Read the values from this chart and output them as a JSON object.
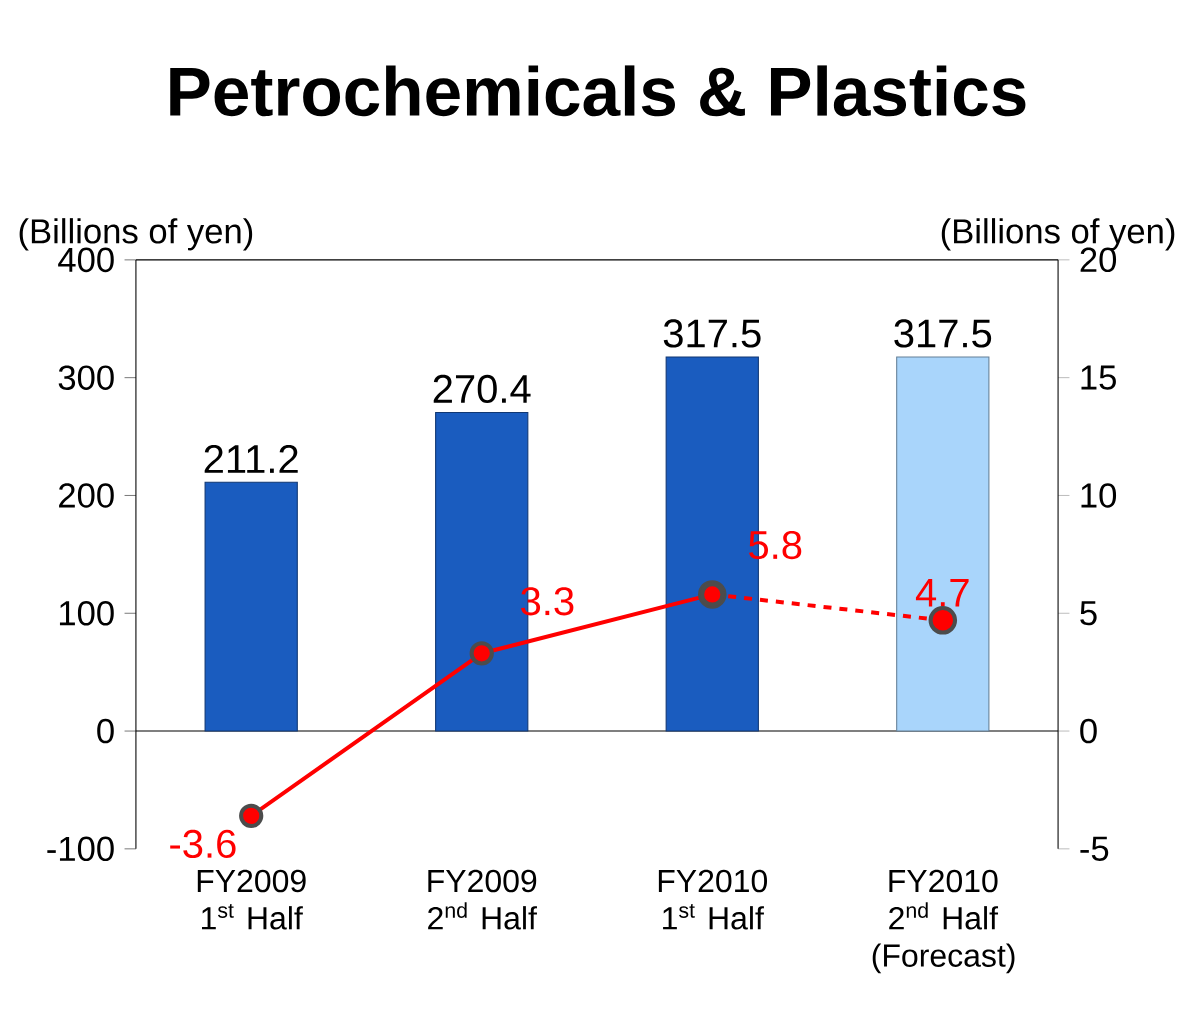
{
  "chart_data": {
    "type": "bar",
    "title": "Petrochemicals & Plastics",
    "ylabel": "(Billions of yen)",
    "y2label": "(Billions of yen)",
    "categories": [
      "FY2009 1$^{st}$ Half",
      "FY2009 2$^{nd}$ Half",
      "FY2010 1$^{st}$ Half",
      "FY2010 2$^{nd}$ Half (Forecast)"
    ],
    "series": [
      {
        "values": [
          211.2,
          270.4,
          317.5,
          317.5
        ],
        "colors": [
          "#1a5cbf",
          "#1a5cbf",
          "#1a5cbf",
          "#a9d5fb"
        ],
        "data_labels": true
      },
      {
        "type": "line",
        "axis": "y2",
        "color": "#ff0000",
        "values": [
          -3.6,
          3.3,
          5.8,
          null
        ],
        "line_style": "solid",
        "marker": "circle",
        "data_labels": true
      },
      {
        "type": "line",
        "axis": "y2",
        "color": "#ff0000",
        "values": [
          null,
          null,
          5.8,
          4.7
        ],
        "line_style": "dashed",
        "marker": "circle",
        "value_labels": [
          null,
          null,
          null,
          "4.7"
        ]
      }
    ],
    "ylim": [
      -100,
      400
    ],
    "yticks": [
      -100,
      0,
      100,
      200,
      300,
      400
    ],
    "y2lim": [
      -5,
      20
    ],
    "y2ticks": [
      -5,
      0,
      5,
      10,
      15,
      20
    ],
    "ref_lines": [
      {
        "axis": "y",
        "value": 0
      }
    ],
    "grid": false
  }
}
